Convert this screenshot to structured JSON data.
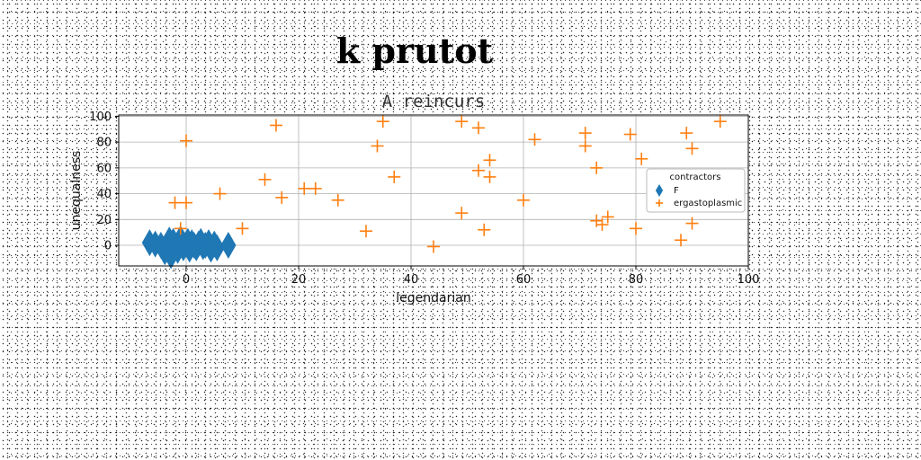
{
  "chart_data": {
    "type": "scatter",
    "title": "k prutot",
    "subtitle": "A reincurs",
    "xlabel": "legendarian",
    "ylabel": "unequalness",
    "xlim": [
      -12,
      100
    ],
    "ylim": [
      -16,
      101
    ],
    "xticks": [
      0,
      20,
      40,
      60,
      80,
      100
    ],
    "yticks": [
      0,
      20,
      40,
      60,
      80,
      100
    ],
    "grid": true,
    "legend": {
      "title": "contractors",
      "position": "right"
    },
    "series": [
      {
        "name": "F",
        "marker": "thin-diamond",
        "color": "#1f77b4",
        "points": [
          [
            -6.5,
            2
          ],
          [
            -5.5,
            1
          ],
          [
            -4.5,
            0
          ],
          [
            -3.8,
            -5
          ],
          [
            -3.2,
            1
          ],
          [
            -3,
            4
          ],
          [
            -2.7,
            -8
          ],
          [
            -2.3,
            3
          ],
          [
            -2,
            0
          ],
          [
            -1.5,
            -4
          ],
          [
            -1.2,
            2
          ],
          [
            -1,
            5
          ],
          [
            -0.5,
            -2
          ],
          [
            0,
            1
          ],
          [
            0.3,
            3
          ],
          [
            0.6,
            -3
          ],
          [
            1,
            2
          ],
          [
            1.4,
            0
          ],
          [
            1.8,
            -2
          ],
          [
            2.2,
            1
          ],
          [
            2.6,
            3
          ],
          [
            3,
            -1
          ],
          [
            3.4,
            0
          ],
          [
            4,
            2
          ],
          [
            4.4,
            -3
          ],
          [
            5,
            1
          ],
          [
            5.5,
            -2
          ],
          [
            7.5,
            0
          ]
        ]
      },
      {
        "name": "ergastoplasmic",
        "marker": "plus",
        "color": "#ff7f0e",
        "points": [
          [
            -2,
            33
          ],
          [
            0,
            33
          ],
          [
            0,
            81
          ],
          [
            -1,
            13
          ],
          [
            6,
            40
          ],
          [
            10,
            13
          ],
          [
            14,
            51
          ],
          [
            16,
            93
          ],
          [
            17,
            37
          ],
          [
            21,
            44
          ],
          [
            23,
            44
          ],
          [
            27,
            35
          ],
          [
            32,
            11
          ],
          [
            34,
            77
          ],
          [
            35,
            96
          ],
          [
            37,
            53
          ],
          [
            44,
            -1
          ],
          [
            49,
            96
          ],
          [
            49,
            25
          ],
          [
            52,
            91
          ],
          [
            52,
            58
          ],
          [
            53,
            12
          ],
          [
            54,
            66
          ],
          [
            54,
            53
          ],
          [
            60,
            35
          ],
          [
            62,
            82
          ],
          [
            71,
            87
          ],
          [
            71,
            77
          ],
          [
            73,
            19
          ],
          [
            73,
            60
          ],
          [
            74,
            16
          ],
          [
            75,
            22
          ],
          [
            79,
            86
          ],
          [
            80,
            13
          ],
          [
            81,
            67
          ],
          [
            88,
            4
          ],
          [
            89,
            87
          ],
          [
            90,
            75
          ],
          [
            90,
            17
          ],
          [
            95,
            96
          ]
        ]
      }
    ]
  }
}
